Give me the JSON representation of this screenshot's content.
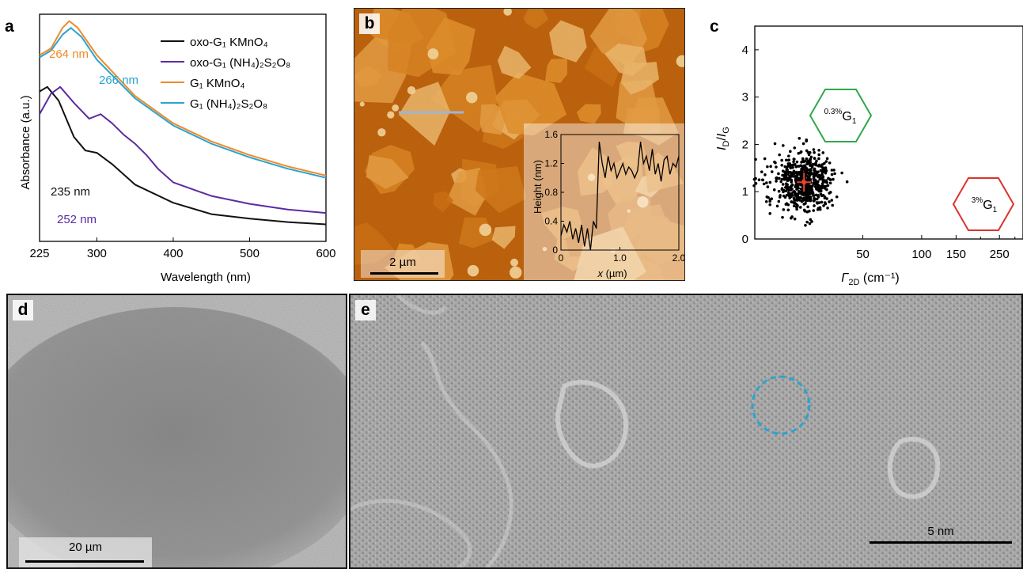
{
  "panel_labels": {
    "a": "a",
    "b": "b",
    "c": "c",
    "d": "d",
    "e": "e"
  },
  "panel_a": {
    "legend": [
      {
        "name": "oxo-G₁ KMnO₄",
        "color": "#111111"
      },
      {
        "name": "oxo-G₁ (NH₄)₂S₂O₈",
        "color": "#5b2ca0"
      },
      {
        "name": "G₁ KMnO₄",
        "color": "#f0892a"
      },
      {
        "name": "G₁ (NH₄)₂S₂O₈",
        "color": "#2aa4cf"
      }
    ],
    "annotations": [
      {
        "text": "264 nm",
        "color": "#f0892a"
      },
      {
        "text": "266 nm",
        "color": "#2aa4cf"
      },
      {
        "text": "235 nm",
        "color": "#111111"
      },
      {
        "text": "252 nm",
        "color": "#5b2ca0"
      }
    ]
  },
  "panel_b": {
    "scale_bar": "2 µm",
    "inset": {
      "xlabel_var": "x",
      "xlabel_unit": " (µm)",
      "ylabel": "Height (nm)"
    }
  },
  "panel_c": {
    "ylabel_main": "I",
    "ylabel_sub1": "D",
    "ylabel_sub2": "G",
    "xlabel_main": "Γ",
    "xlabel_sub": "2D",
    "xlabel_unit": " (cm⁻¹)",
    "hex_green": {
      "sup": "0.3%",
      "text": "G",
      "sub": "1",
      "color": "#2ea84a"
    },
    "hex_red": {
      "sup": "3%",
      "text": "G",
      "sub": "1",
      "color": "#d9342b"
    }
  },
  "panel_d": {
    "scale_bar": "20 µm"
  },
  "panel_e": {
    "scale_bar": "5 nm",
    "marker_color": "#2aa4cf"
  },
  "chart_data": [
    {
      "type": "line",
      "title": "",
      "xlabel": "Wavelength (nm)",
      "ylabel": "Absorbance (a.u.)",
      "xlim": [
        225,
        600
      ],
      "xticks": [
        225,
        300,
        400,
        500,
        600
      ],
      "series": [
        {
          "name": "oxo-G₁ KMnO₄",
          "x": [
            225,
            235,
            250,
            270,
            285,
            300,
            320,
            350,
            400,
            450,
            500,
            550,
            600
          ],
          "y": [
            0.66,
            0.68,
            0.62,
            0.46,
            0.4,
            0.39,
            0.34,
            0.25,
            0.17,
            0.12,
            0.1,
            0.085,
            0.075
          ]
        },
        {
          "name": "oxo-G₁ (NH₄)₂S₂O₈",
          "x": [
            225,
            240,
            252,
            270,
            290,
            305,
            320,
            335,
            350,
            365,
            380,
            400,
            450,
            500,
            550,
            600
          ],
          "y": [
            0.56,
            0.65,
            0.68,
            0.61,
            0.54,
            0.56,
            0.52,
            0.47,
            0.43,
            0.38,
            0.32,
            0.26,
            0.2,
            0.165,
            0.14,
            0.125
          ]
        },
        {
          "name": "G₁ KMnO₄",
          "x": [
            225,
            240,
            255,
            264,
            275,
            300,
            350,
            400,
            450,
            500,
            550,
            600
          ],
          "y": [
            0.82,
            0.85,
            0.94,
            0.97,
            0.94,
            0.82,
            0.64,
            0.52,
            0.44,
            0.38,
            0.33,
            0.29
          ]
        },
        {
          "name": "G₁ (NH₄)₂S₂O₈",
          "x": [
            225,
            240,
            255,
            266,
            280,
            300,
            350,
            400,
            450,
            500,
            550,
            600
          ],
          "y": [
            0.81,
            0.84,
            0.91,
            0.94,
            0.9,
            0.8,
            0.63,
            0.51,
            0.43,
            0.37,
            0.32,
            0.28
          ]
        }
      ]
    },
    {
      "type": "line",
      "title": "",
      "xlabel": "x (µm)",
      "ylabel": "Height (nm)",
      "xlim": [
        0,
        2.0
      ],
      "ylim": [
        0,
        1.6
      ],
      "xticks": [
        0,
        1.0,
        2.0
      ],
      "yticks": [
        0,
        0.4,
        0.8,
        1.2,
        1.6
      ],
      "series": [
        {
          "x": [
            0,
            0.05,
            0.1,
            0.15,
            0.2,
            0.25,
            0.3,
            0.35,
            0.4,
            0.45,
            0.5,
            0.55,
            0.6,
            0.65,
            0.7,
            0.75,
            0.8,
            0.85,
            0.9,
            0.95,
            1.0,
            1.05,
            1.1,
            1.15,
            1.2,
            1.25,
            1.3,
            1.35,
            1.4,
            1.45,
            1.5,
            1.55,
            1.6,
            1.65,
            1.7,
            1.75,
            1.8,
            1.85,
            1.9,
            1.95,
            2.0
          ],
          "y": [
            0.2,
            0.35,
            0.25,
            0.4,
            0.15,
            0.3,
            0.1,
            0.35,
            0.05,
            0.3,
            0.0,
            0.4,
            0.3,
            1.5,
            1.2,
            1.0,
            1.3,
            1.1,
            1.2,
            1.0,
            1.1,
            1.2,
            1.05,
            1.15,
            1.1,
            1.0,
            1.1,
            1.5,
            1.2,
            1.3,
            1.1,
            1.4,
            1.05,
            1.2,
            0.95,
            1.25,
            1.3,
            1.05,
            1.2,
            1.15,
            1.3
          ]
        }
      ]
    },
    {
      "type": "scatter",
      "title": "",
      "xlabel": "Γ2D (cm⁻¹)",
      "ylabel": "ID/IG",
      "xscale": "log",
      "xticks": [
        50,
        100,
        150,
        250
      ],
      "ylim": [
        0,
        4.5
      ],
      "yticks": [
        0,
        1,
        2,
        3,
        4
      ],
      "series": [
        {
          "name": "",
          "mean": {
            "x": 25,
            "y": 1.2
          },
          "spread": {
            "x_sd": 4.5,
            "y_sd": 0.32
          },
          "count": 600
        }
      ]
    }
  ]
}
